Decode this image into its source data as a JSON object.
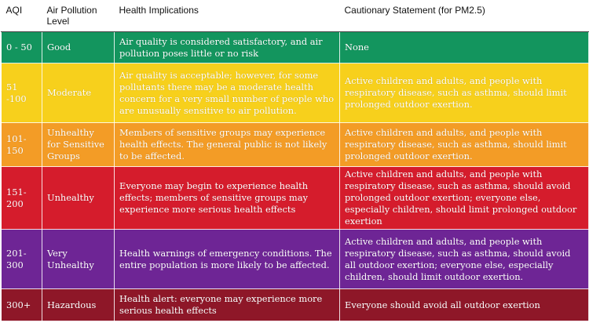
{
  "headers": {
    "aqi": "AQI",
    "level": "Air Pollution Level",
    "health": "Health Implications",
    "caution": "Cautionary Statement (for PM2.5)"
  },
  "rows": [
    {
      "aqi": "0 - 50",
      "level": "Good",
      "health": "Air quality is considered satisfactory, and air pollution poses little or no risk",
      "caution": "None"
    },
    {
      "aqi": "51 -100",
      "level": "Moderate",
      "health": "Air quality is acceptable; however, for some pollutants there may be a moderate health concern for a very small number of people who are unusually sensitive to air pollution.",
      "caution": "Active children and adults, and people with respiratory disease, such as asthma, should limit prolonged outdoor exertion."
    },
    {
      "aqi": "101-150",
      "level": "Unhealthy for Sensitive Groups",
      "health": "Members of sensitive groups may experience health effects. The general public is not likely to be affected.",
      "caution": "Active children and adults, and people with respiratory disease, such as asthma, should limit prolonged outdoor exertion."
    },
    {
      "aqi": "151-200",
      "level": "Unhealthy",
      "health": "Everyone may begin to experience health effects; members of sensitive groups may experience more serious health effects",
      "caution": "Active children and adults, and people with respiratory disease, such as asthma, should avoid prolonged outdoor exertion; everyone else, especially children, should limit prolonged outdoor exertion"
    },
    {
      "aqi": "201-300",
      "level": "Very Unhealthy",
      "health": "Health warnings of emergency conditions. The entire population is more likely to be affected.",
      "caution": "Active children and adults, and people with respiratory disease, such as asthma, should avoid all outdoor exertion; everyone else, especially children, should limit outdoor exertion."
    },
    {
      "aqi": "300+",
      "level": "Hazardous",
      "health": "Health alert: everyone may experience more serious health effects",
      "caution": "Everyone should avoid all outdoor exertion"
    }
  ],
  "colors": {
    "good": "#13955e",
    "moderate": "#f7d01c",
    "unhealthy_sensitive": "#f39c26",
    "unhealthy": "#d51c2c",
    "very_unhealthy": "#6e2595",
    "hazardous": "#8e1728"
  }
}
